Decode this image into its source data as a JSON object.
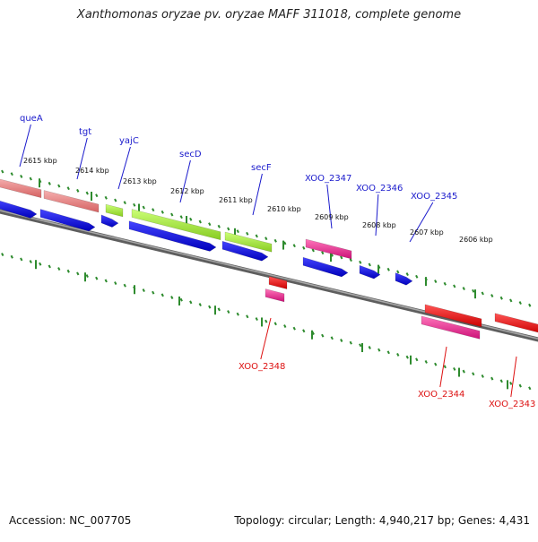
{
  "title": "Xanthomonas oryzae pv. oryzae MAFF 311018, complete genome",
  "footer": {
    "accession": "Accession: NC_007705",
    "summary": "Topology: circular; Length: 4,940,217 bp; Genes: 4,431"
  },
  "colors": {
    "backbone": "#7a7a7a",
    "ticks": "#2e8b2e",
    "label_upper": "#1a1acc",
    "label_lower": "#dd1111",
    "salmon": "#e47c7c",
    "lime": "#aaee44",
    "blue": "#1a1aee",
    "magenta": "#ee3399",
    "red": "#ee1111"
  },
  "scale": {
    "kbp_labels": [
      "2615 kbp",
      "2614 kbp",
      "2613 kbp",
      "2612 kbp",
      "2611 kbp",
      "2610 kbp",
      "2609 kbp",
      "2608 kbp",
      "2607 kbp",
      "2606 kbp"
    ]
  },
  "genes_upper": [
    "queA",
    "tgt",
    "yajC",
    "secD",
    "secF",
    "XOO_2347",
    "XOO_2346",
    "XOO_2345"
  ],
  "genes_lower": [
    "XOO_2348",
    "XOO_2344",
    "XOO_2343"
  ]
}
